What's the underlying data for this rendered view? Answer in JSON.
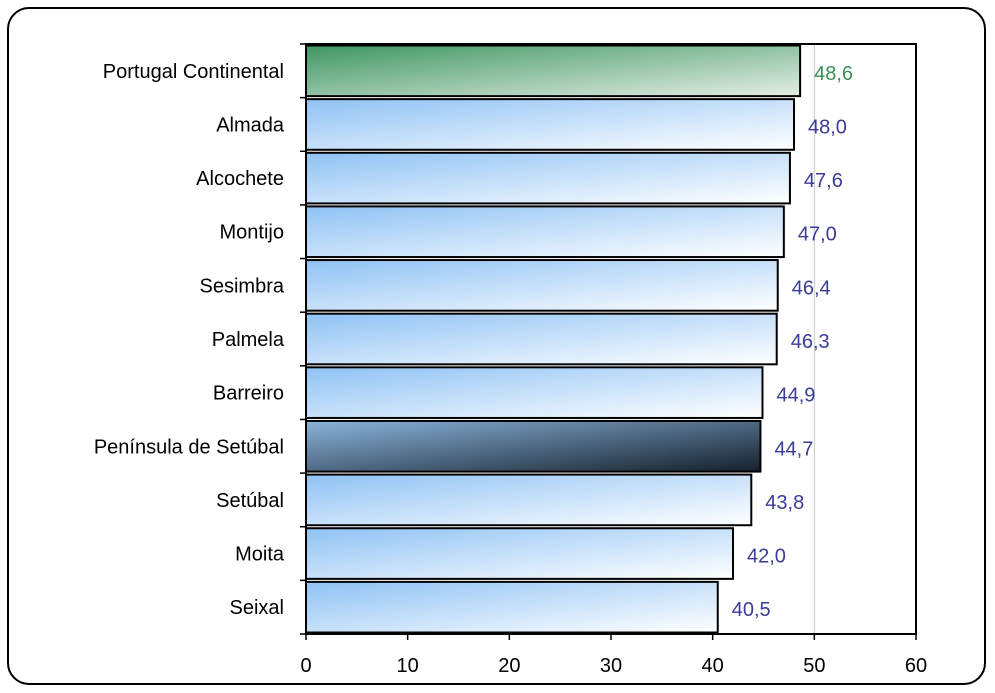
{
  "chart_data": {
    "type": "bar",
    "orientation": "horizontal",
    "categories": [
      "Portugal Continental",
      "Almada",
      "Alcochete",
      "Montijo",
      "Sesimbra",
      "Palmela",
      "Barreiro",
      "Península de Setúbal",
      "Setúbal",
      "Moita",
      "Seixal"
    ],
    "values": [
      48.6,
      48.0,
      47.6,
      47.0,
      46.4,
      46.3,
      44.9,
      44.7,
      43.8,
      42.0,
      40.5
    ],
    "value_labels": [
      "48,6",
      "48,0",
      "47,6",
      "47,0",
      "46,4",
      "46,3",
      "44,9",
      "44,7",
      "43,8",
      "42,0",
      "40,5"
    ],
    "highlight": {
      "Portugal Continental": "green",
      "Península de Setúbal": "dark"
    },
    "xlim": [
      0,
      60
    ],
    "x_ticks": [
      0,
      10,
      20,
      30,
      40,
      50,
      60
    ],
    "x_tick_labels": [
      "0",
      "10",
      "20",
      "30",
      "40",
      "50",
      "60"
    ],
    "title": "",
    "xlabel": "",
    "ylabel": "",
    "grid": "vertical at 50",
    "legend": "none"
  },
  "colors": {
    "bar_light_start": "#8fc2f4",
    "bar_light_end": "#ffffff",
    "bar_green_start": "#3f9664",
    "bar_green_end": "#e4eee4",
    "bar_dark_start": "#8ab4da",
    "bar_dark_end": "#15202c",
    "value_blue": "#3b3c96",
    "value_green": "#3c9058",
    "gridline": "#c8c8c8"
  }
}
